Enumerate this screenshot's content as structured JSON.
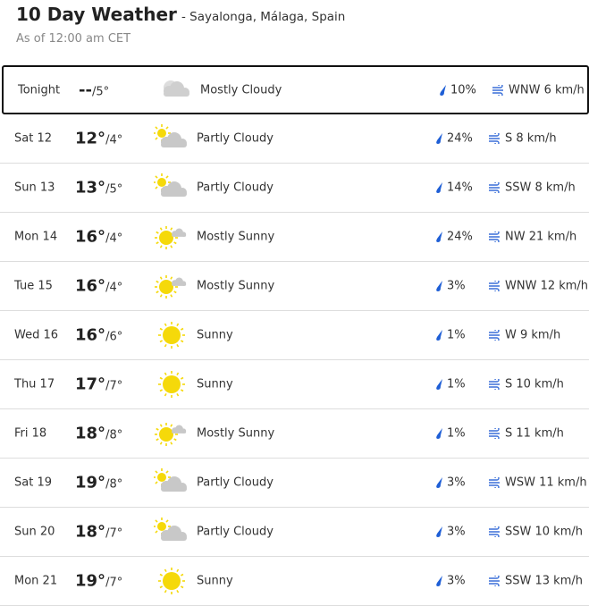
{
  "header": {
    "title": "10 Day Weather",
    "location": "- Sayalonga, Málaga, Spain",
    "as_of": "As of 12:00 am CET"
  },
  "colors": {
    "sun": "#f5d90a",
    "cloud": "#c8c8c8",
    "precip": "#1f5fd6",
    "wind": "#3a6fd8"
  },
  "days": [
    {
      "day": "Tonight",
      "hi": "--",
      "lo": "/5°",
      "icon": "mostly-cloudy-night",
      "cond": "Mostly Cloudy",
      "precip": "10%",
      "wind": "WNW 6 km/h"
    },
    {
      "day": "Sat 12",
      "hi": "12°",
      "lo": "/4°",
      "icon": "partly-cloudy",
      "cond": "Partly Cloudy",
      "precip": "24%",
      "wind": "S 8 km/h"
    },
    {
      "day": "Sun 13",
      "hi": "13°",
      "lo": "/5°",
      "icon": "partly-cloudy",
      "cond": "Partly Cloudy",
      "precip": "14%",
      "wind": "SSW 8 km/h"
    },
    {
      "day": "Mon 14",
      "hi": "16°",
      "lo": "/4°",
      "icon": "mostly-sunny",
      "cond": "Mostly Sunny",
      "precip": "24%",
      "wind": "NW 21 km/h"
    },
    {
      "day": "Tue 15",
      "hi": "16°",
      "lo": "/4°",
      "icon": "mostly-sunny",
      "cond": "Mostly Sunny",
      "precip": "3%",
      "wind": "WNW 12 km/h"
    },
    {
      "day": "Wed 16",
      "hi": "16°",
      "lo": "/6°",
      "icon": "sunny",
      "cond": "Sunny",
      "precip": "1%",
      "wind": "W 9 km/h"
    },
    {
      "day": "Thu 17",
      "hi": "17°",
      "lo": "/7°",
      "icon": "sunny",
      "cond": "Sunny",
      "precip": "1%",
      "wind": "S 10 km/h"
    },
    {
      "day": "Fri 18",
      "hi": "18°",
      "lo": "/8°",
      "icon": "mostly-sunny",
      "cond": "Mostly Sunny",
      "precip": "1%",
      "wind": "S 11 km/h"
    },
    {
      "day": "Sat 19",
      "hi": "19°",
      "lo": "/8°",
      "icon": "partly-cloudy",
      "cond": "Partly Cloudy",
      "precip": "3%",
      "wind": "WSW 11 km/h"
    },
    {
      "day": "Sun 20",
      "hi": "18°",
      "lo": "/7°",
      "icon": "partly-cloudy",
      "cond": "Partly Cloudy",
      "precip": "3%",
      "wind": "SSW 10 km/h"
    },
    {
      "day": "Mon 21",
      "hi": "19°",
      "lo": "/7°",
      "icon": "sunny",
      "cond": "Sunny",
      "precip": "3%",
      "wind": "SSW 13 km/h"
    }
  ]
}
